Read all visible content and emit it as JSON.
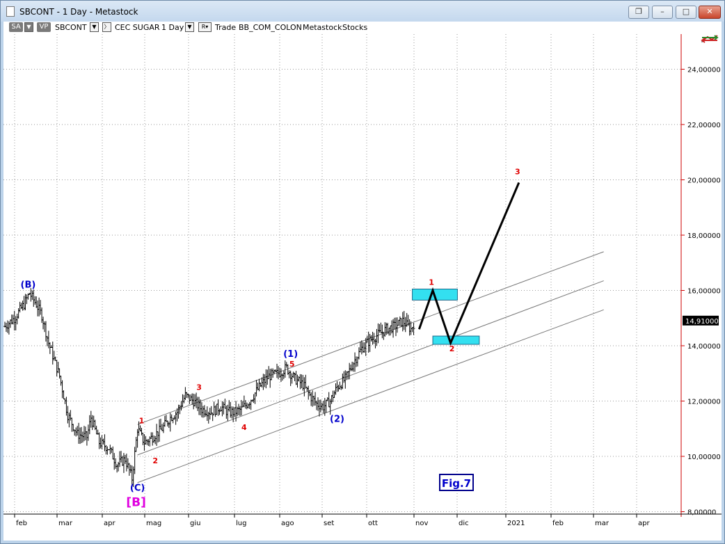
{
  "window": {
    "title": "SBCONT - 1 Day - Metastock"
  },
  "toolbar": {
    "sa_label": "SA",
    "vp_label": "VP",
    "symbol": "SBCONT",
    "instrument_name": "CEC SUGAR",
    "timeframe": "1 Day",
    "r_label": "R",
    "trade_label": "Trade",
    "source": "BB_COM_COLON",
    "provider": "Metastock",
    "category": "Stocks"
  },
  "chart_data": {
    "type": "ohlc",
    "title": "",
    "price_ticks": [
      "8,00000",
      "10,00000",
      "12,00000",
      "14,00000",
      "16,00000",
      "18,00000",
      "20,00000",
      "22,00000",
      "24,00000"
    ],
    "ylim": [
      8,
      25
    ],
    "month_labels": [
      "feb",
      "mar",
      "apr",
      "mag",
      "giu",
      "lug",
      "ago",
      "set",
      "ott",
      "nov",
      "dic",
      "2021",
      "feb",
      "mar",
      "apr"
    ],
    "last_price": "14,91000",
    "anchor_prices": [
      [
        0,
        14.7
      ],
      [
        7,
        15.0
      ],
      [
        14,
        15.5
      ],
      [
        18,
        15.9
      ],
      [
        23,
        15.5
      ],
      [
        27,
        15.1
      ],
      [
        32,
        14.1
      ],
      [
        40,
        12.9
      ],
      [
        46,
        11.5
      ],
      [
        53,
        10.8
      ],
      [
        60,
        10.7
      ],
      [
        63,
        11.4
      ],
      [
        69,
        10.5
      ],
      [
        76,
        10.3
      ],
      [
        82,
        9.7
      ],
      [
        88,
        9.9
      ],
      [
        93,
        9.2
      ],
      [
        97,
        11.0
      ],
      [
        102,
        10.5
      ],
      [
        108,
        10.7
      ],
      [
        115,
        11.0
      ],
      [
        121,
        11.4
      ],
      [
        126,
        11.6
      ],
      [
        132,
        12.2
      ],
      [
        138,
        12.0
      ],
      [
        144,
        11.7
      ],
      [
        151,
        11.6
      ],
      [
        158,
        11.8
      ],
      [
        163,
        11.6
      ],
      [
        168,
        11.6
      ],
      [
        173,
        11.7
      ],
      [
        179,
        12.0
      ],
      [
        186,
        12.5
      ],
      [
        193,
        12.9
      ],
      [
        200,
        13.0
      ],
      [
        206,
        13.2
      ],
      [
        212,
        12.8
      ],
      [
        218,
        12.6
      ],
      [
        223,
        12.2
      ],
      [
        228,
        11.9
      ],
      [
        233,
        11.8
      ],
      [
        238,
        12.0
      ],
      [
        243,
        12.5
      ],
      [
        249,
        12.8
      ],
      [
        255,
        13.4
      ],
      [
        261,
        13.9
      ],
      [
        267,
        14.2
      ],
      [
        273,
        14.4
      ],
      [
        279,
        14.6
      ],
      [
        285,
        14.7
      ],
      [
        291,
        14.9
      ],
      [
        297,
        14.6
      ],
      [
        300,
        14.9
      ]
    ],
    "channel_lines": [
      {
        "from": [
          97,
          11.15
        ],
        "to": [
          438,
          17.4
        ]
      },
      {
        "from": [
          97,
          10.05
        ],
        "to": [
          438,
          16.35
        ]
      },
      {
        "from": [
          97,
          9.05
        ],
        "to": [
          438,
          15.3
        ]
      }
    ],
    "projection_path": [
      [
        303,
        14.6
      ],
      [
        313,
        16.0
      ],
      [
        326,
        14.1
      ],
      [
        376,
        19.9
      ]
    ],
    "target_boxes": [
      {
        "x0": 298,
        "x1": 331,
        "y0": 15.65,
        "y1": 16.05,
        "color": "#33e0f0"
      },
      {
        "x0": 313,
        "x1": 347,
        "y0": 14.05,
        "y1": 14.35,
        "color": "#33e0f0"
      }
    ],
    "wave_labels": [
      {
        "text": "(B)",
        "x": 17,
        "y": 16.1,
        "style": "blue"
      },
      {
        "text": "(C)",
        "x": 97,
        "y": 8.75,
        "style": "blue"
      },
      {
        "text": "[B]",
        "x": 96,
        "y": 8.2,
        "style": "magenta"
      },
      {
        "text": "1",
        "x": 100,
        "y": 11.2,
        "style": "red"
      },
      {
        "text": "2",
        "x": 110,
        "y": 9.75,
        "style": "red"
      },
      {
        "text": "3",
        "x": 142,
        "y": 12.4,
        "style": "red"
      },
      {
        "text": "4",
        "x": 175,
        "y": 10.95,
        "style": "red"
      },
      {
        "text": "5",
        "x": 210,
        "y": 13.25,
        "style": "red"
      },
      {
        "text": "(1)",
        "x": 209,
        "y": 13.6,
        "style": "blue"
      },
      {
        "text": "(2)",
        "x": 243,
        "y": 11.25,
        "style": "blue"
      },
      {
        "text": "1",
        "x": 312,
        "y": 16.2,
        "style": "red"
      },
      {
        "text": "2",
        "x": 327,
        "y": 13.8,
        "style": "red"
      },
      {
        "text": "3",
        "x": 375,
        "y": 20.2,
        "style": "red"
      }
    ],
    "annotation": "Fig.7"
  },
  "colors": {
    "price_axis_line": "#cc0000",
    "grid": "#9a9a9a",
    "wave_red": "#e00000",
    "wave_blue": "#0000cc",
    "wave_magenta": "#e000e0",
    "box_cyan": "#33e0f0"
  },
  "icons": {
    "app": "document-icon",
    "chart_tool": "crosshair-arrows-icon"
  }
}
